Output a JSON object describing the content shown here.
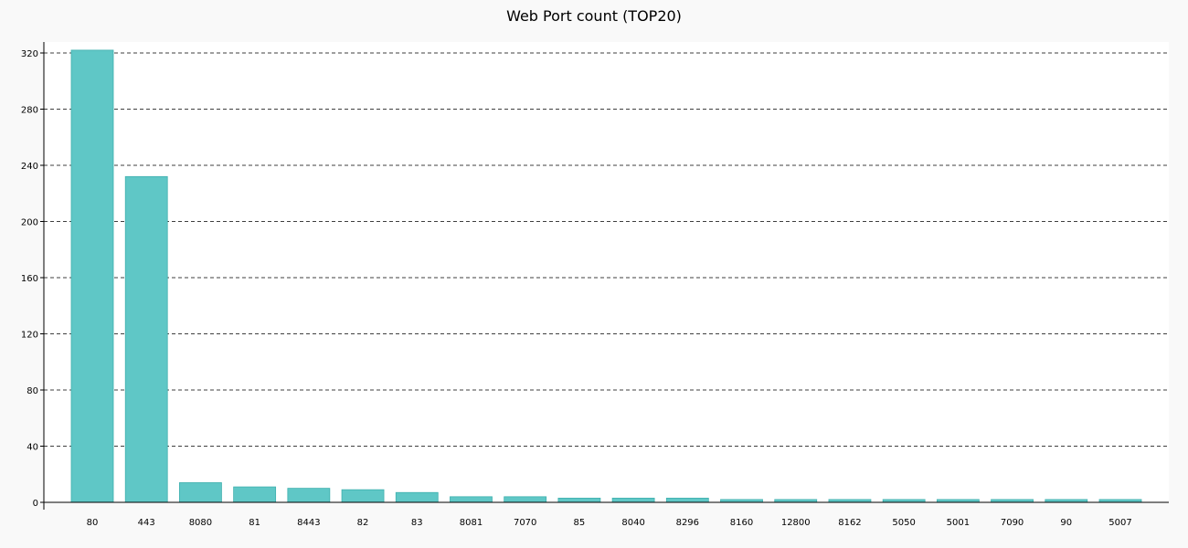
{
  "chart_data": {
    "type": "bar",
    "title": "Web Port count (TOP20)",
    "xlabel": "",
    "ylabel": "",
    "categories": [
      "80",
      "443",
      "8080",
      "81",
      "8443",
      "82",
      "83",
      "8081",
      "7070",
      "85",
      "8040",
      "8296",
      "8160",
      "12800",
      "8162",
      "5050",
      "5001",
      "7090",
      "90",
      "5007"
    ],
    "values": [
      322,
      232,
      14,
      11,
      10,
      9,
      7,
      4,
      4,
      3,
      3,
      3,
      2,
      2,
      2,
      2,
      2,
      2,
      2,
      2
    ],
    "ylim": [
      0,
      330
    ],
    "yticks": [
      0,
      40,
      80,
      120,
      160,
      200,
      240,
      280,
      320
    ],
    "grid": "horizontal-dashed",
    "legend": "none",
    "colors": {
      "bar_fill": "#5fc7c6",
      "bar_edge": "#3fb0ae",
      "plot_bg": "#ffffff",
      "page_bg": "#f9f9f9"
    }
  }
}
